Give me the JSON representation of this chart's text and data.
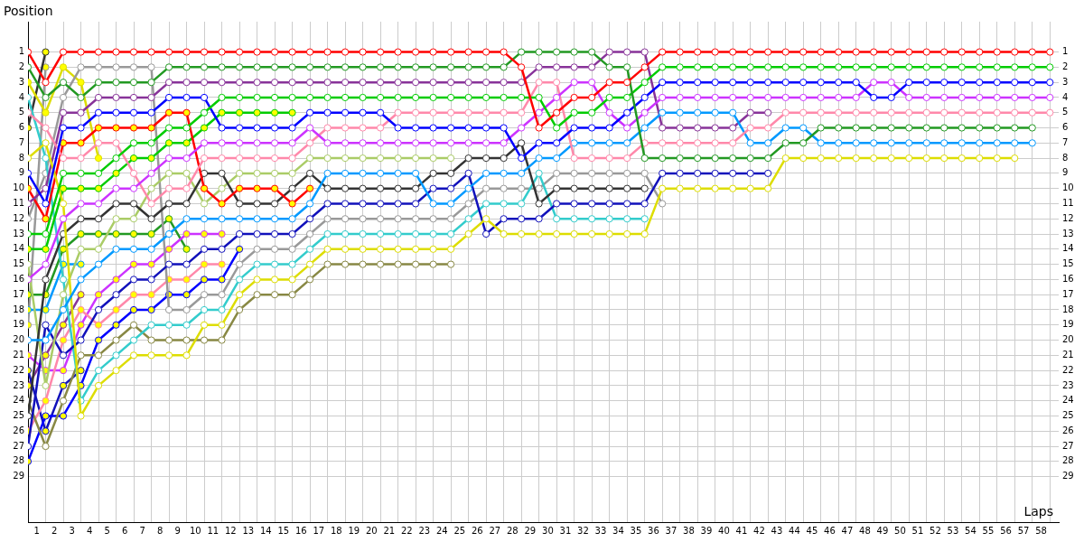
{
  "chart_data": {
    "type": "line",
    "xlabel": "Laps",
    "ylabel": "Position",
    "grid": true,
    "marker": "circle",
    "line_style": "solid",
    "x": [
      0,
      1,
      2,
      3,
      4,
      5,
      6,
      7,
      8,
      9,
      10,
      11,
      12,
      13,
      14,
      15,
      16,
      17,
      18,
      19,
      20,
      21,
      22,
      23,
      24,
      25,
      26,
      27,
      28,
      29,
      30,
      31,
      32,
      33,
      34,
      35,
      36,
      37,
      38,
      39,
      40,
      41,
      42,
      43,
      44,
      45,
      46,
      47,
      48,
      49,
      50,
      51,
      52,
      53,
      54,
      55,
      56,
      57,
      58
    ],
    "xlim": [
      0,
      58.5
    ],
    "xticks": [
      {
        "value": 0,
        "label": null
      },
      {
        "value": 1,
        "label": null
      },
      {
        "value": 2,
        "label": null
      },
      {
        "value": 3,
        "label": null
      },
      {
        "value": 4,
        "label": null
      },
      {
        "value": 5,
        "label": null
      },
      {
        "value": 6,
        "label": null
      },
      {
        "value": 7,
        "label": null
      },
      {
        "value": 8,
        "label": null
      },
      {
        "value": 9,
        "label": null
      },
      {
        "value": 10,
        "label": null
      },
      {
        "value": 11,
        "label": null
      },
      {
        "value": 12,
        "label": null
      },
      {
        "value": 13,
        "label": null
      },
      {
        "value": 14,
        "label": null
      },
      {
        "value": 15,
        "label": null
      },
      {
        "value": 16,
        "label": null
      },
      {
        "value": 17,
        "label": null
      },
      {
        "value": 18,
        "label": null
      },
      {
        "value": 19,
        "label": null
      },
      {
        "value": 20,
        "label": null
      },
      {
        "value": 21,
        "label": null
      },
      {
        "value": 22,
        "label": null
      },
      {
        "value": 23,
        "label": null
      },
      {
        "value": 24,
        "label": null
      },
      {
        "value": 25,
        "label": null
      },
      {
        "value": 26,
        "label": null
      },
      {
        "value": 27,
        "label": null
      },
      {
        "value": 28,
        "label": null
      },
      {
        "value": 29,
        "label": null
      },
      {
        "value": 30,
        "label": null
      },
      {
        "value": 31,
        "label": null
      },
      {
        "value": 32,
        "label": null
      },
      {
        "value": 33,
        "label": null
      },
      {
        "value": 34,
        "label": null
      },
      {
        "value": 35,
        "label": null
      },
      {
        "value": 36,
        "label": null
      },
      {
        "value": 37,
        "label": null
      },
      {
        "value": 38,
        "label": null
      },
      {
        "value": 39,
        "label": null
      },
      {
        "value": 40,
        "label": null
      },
      {
        "value": 41,
        "label": null
      },
      {
        "value": 42,
        "label": null
      },
      {
        "value": 43,
        "label": null
      },
      {
        "value": 44,
        "label": null
      },
      {
        "value": 45,
        "label": null
      },
      {
        "value": 46,
        "label": null
      },
      {
        "value": 47,
        "label": null
      },
      {
        "value": 48,
        "label": null
      },
      {
        "value": 49,
        "label": null
      },
      {
        "value": 50,
        "label": null
      },
      {
        "value": 51,
        "label": null
      },
      {
        "value": 52,
        "label": null
      },
      {
        "value": 53,
        "label": null
      },
      {
        "value": 54,
        "label": null
      },
      {
        "value": 55,
        "label": null
      },
      {
        "value": 56,
        "label": null
      },
      {
        "value": 57,
        "label": null
      },
      {
        "value": 58,
        "label": null
      },
      {
        "value": 0.5,
        "label": "1"
      },
      {
        "value": 1.5,
        "label": "2"
      },
      {
        "value": 2.5,
        "label": "3"
      },
      {
        "value": 3.5,
        "label": "4"
      },
      {
        "value": 4.5,
        "label": "5"
      },
      {
        "value": 5.5,
        "label": "6"
      },
      {
        "value": 6.5,
        "label": "7"
      },
      {
        "value": 7.5,
        "label": "8"
      },
      {
        "value": 8.5,
        "label": "9"
      },
      {
        "value": 9.5,
        "label": "10"
      },
      {
        "value": 10.5,
        "label": "11"
      },
      {
        "value": 11.5,
        "label": "12"
      },
      {
        "value": 12.5,
        "label": "13"
      },
      {
        "value": 13.5,
        "label": "14"
      },
      {
        "value": 14.5,
        "label": "15"
      },
      {
        "value": 15.5,
        "label": "16"
      },
      {
        "value": 16.5,
        "label": "17"
      },
      {
        "value": 17.5,
        "label": "18"
      },
      {
        "value": 18.5,
        "label": "19"
      },
      {
        "value": 19.5,
        "label": "20"
      },
      {
        "value": 20.5,
        "label": "21"
      },
      {
        "value": 21.5,
        "label": "22"
      },
      {
        "value": 22.5,
        "label": "23"
      },
      {
        "value": 23.5,
        "label": "24"
      },
      {
        "value": 24.5,
        "label": "25"
      },
      {
        "value": 25.5,
        "label": "26"
      },
      {
        "value": 26.5,
        "label": "27"
      },
      {
        "value": 27.5,
        "label": "28"
      },
      {
        "value": 28.5,
        "label": "29"
      },
      {
        "value": 29.5,
        "label": "30"
      },
      {
        "value": 30.5,
        "label": "31"
      },
      {
        "value": 31.5,
        "label": "32"
      },
      {
        "value": 32.5,
        "label": "33"
      },
      {
        "value": 33.5,
        "label": "34"
      },
      {
        "value": 34.5,
        "label": "35"
      },
      {
        "value": 35.5,
        "label": "36"
      },
      {
        "value": 36.5,
        "label": "37"
      },
      {
        "value": 37.5,
        "label": "38"
      },
      {
        "value": 38.5,
        "label": "39"
      },
      {
        "value": 39.5,
        "label": "40"
      },
      {
        "value": 40.5,
        "label": "41"
      },
      {
        "value": 41.5,
        "label": "42"
      },
      {
        "value": 42.5,
        "label": "43"
      },
      {
        "value": 43.5,
        "label": "44"
      },
      {
        "value": 44.5,
        "label": "45"
      },
      {
        "value": 45.5,
        "label": "46"
      },
      {
        "value": 46.5,
        "label": "47"
      },
      {
        "value": 47.5,
        "label": "48"
      },
      {
        "value": 48.5,
        "label": "49"
      },
      {
        "value": 49.5,
        "label": "50"
      },
      {
        "value": 50.5,
        "label": "51"
      },
      {
        "value": 51.5,
        "label": "52"
      },
      {
        "value": 52.5,
        "label": "53"
      },
      {
        "value": 53.5,
        "label": "54"
      },
      {
        "value": 54.5,
        "label": "55"
      },
      {
        "value": 55.5,
        "label": "56"
      },
      {
        "value": 56.5,
        "label": "57"
      },
      {
        "value": 57.5,
        "label": "58"
      }
    ],
    "ylim": [
      32,
      -1
    ],
    "yticks": [
      1,
      2,
      3,
      4,
      5,
      6,
      7,
      8,
      9,
      10,
      11,
      12,
      13,
      14,
      15,
      16,
      17,
      18,
      19,
      20,
      21,
      22,
      23,
      24,
      25,
      26,
      27,
      28,
      29
    ],
    "y2lim": [
      32,
      -1
    ],
    "y2ticks": [
      1,
      2,
      3,
      4,
      5,
      6,
      7,
      8,
      9,
      10,
      11,
      12,
      13,
      14,
      15,
      16,
      17,
      18,
      19,
      20,
      21,
      22,
      23,
      24,
      25,
      26,
      27,
      28,
      29
    ],
    "series": [
      {
        "color": "#ff0000",
        "values": [
          1,
          3,
          1,
          1,
          1,
          1,
          1,
          1,
          1,
          1,
          1,
          1,
          1,
          1,
          1,
          1,
          1,
          1,
          1,
          1,
          1,
          1,
          1,
          1,
          1,
          1,
          1,
          1,
          2,
          6,
          5,
          4,
          4,
          3,
          3,
          2,
          1,
          1,
          1,
          1,
          1,
          1,
          1,
          1,
          1,
          1,
          1,
          1,
          1,
          1,
          1,
          1,
          1,
          1,
          1,
          1,
          1,
          1,
          1
        ]
      },
      {
        "color": "#229922",
        "values": [
          2,
          4,
          3,
          4,
          3,
          3,
          3,
          3,
          2,
          2,
          2,
          2,
          2,
          2,
          2,
          2,
          2,
          2,
          2,
          2,
          2,
          2,
          2,
          2,
          2,
          2,
          2,
          2,
          1,
          1,
          1,
          1,
          1,
          2,
          2,
          8,
          8,
          8,
          8,
          8,
          8,
          8,
          8,
          7,
          7,
          6,
          6,
          6,
          6,
          6,
          6,
          6,
          6,
          6,
          6,
          6,
          6,
          6,
          null
        ]
      },
      {
        "color": "#00cc00",
        "values": [
          13,
          13,
          9,
          9,
          9,
          8,
          7,
          7,
          6,
          6,
          5,
          4,
          4,
          4,
          4,
          4,
          4,
          4,
          4,
          4,
          4,
          4,
          4,
          4,
          4,
          4,
          4,
          4,
          4,
          4,
          6,
          5,
          5,
          4,
          4,
          3,
          2,
          2,
          2,
          2,
          2,
          2,
          2,
          2,
          2,
          2,
          2,
          2,
          2,
          2,
          2,
          2,
          2,
          2,
          2,
          2,
          2,
          2,
          2
        ]
      },
      {
        "color": "#0000ff",
        "values": [
          9,
          11,
          6,
          6,
          5,
          5,
          5,
          5,
          4,
          4,
          4,
          6,
          6,
          6,
          6,
          6,
          5,
          5,
          5,
          5,
          5,
          6,
          6,
          6,
          6,
          6,
          6,
          6,
          8,
          7,
          7,
          6,
          6,
          6,
          5,
          4,
          3,
          3,
          3,
          3,
          3,
          3,
          3,
          3,
          3,
          3,
          3,
          3,
          4,
          4,
          3,
          3,
          3,
          3,
          3,
          3,
          3,
          3,
          3
        ]
      },
      {
        "color": "#cc33ff",
        "values": [
          16,
          15,
          12,
          11,
          11,
          10,
          10,
          9,
          8,
          8,
          7,
          7,
          7,
          7,
          7,
          7,
          6,
          7,
          7,
          7,
          7,
          7,
          7,
          7,
          7,
          7,
          7,
          7,
          6,
          5,
          4,
          3,
          3,
          5,
          6,
          5,
          4,
          4,
          4,
          4,
          4,
          4,
          4,
          4,
          4,
          4,
          4,
          4,
          3,
          3,
          4,
          4,
          4,
          4,
          4,
          4,
          4,
          4,
          4
        ]
      },
      {
        "color": "#ff88aa",
        "values": [
          5,
          6,
          8,
          8,
          7,
          7,
          9,
          11,
          10,
          10,
          8,
          8,
          8,
          8,
          8,
          8,
          7,
          6,
          6,
          6,
          6,
          5,
          5,
          5,
          5,
          5,
          5,
          5,
          5,
          3,
          3,
          8,
          8,
          8,
          8,
          7,
          7,
          7,
          7,
          7,
          7,
          6,
          6,
          5,
          5,
          5,
          5,
          5,
          5,
          5,
          5,
          5,
          5,
          5,
          5,
          5,
          5,
          5,
          5
        ]
      },
      {
        "color": "#0099ff",
        "values": [
          20,
          20,
          18,
          16,
          15,
          14,
          14,
          14,
          13,
          12,
          12,
          12,
          12,
          12,
          12,
          12,
          11,
          9,
          9,
          9,
          9,
          9,
          9,
          11,
          11,
          10,
          9,
          9,
          9,
          8,
          8,
          7,
          7,
          7,
          7,
          6,
          5,
          5,
          5,
          5,
          5,
          7,
          7,
          6,
          6,
          7,
          7,
          7,
          7,
          7,
          7,
          7,
          7,
          7,
          7,
          7,
          7,
          7,
          null
        ]
      },
      {
        "color": "#dddd00",
        "values": [
          8,
          7,
          11,
          25,
          23,
          22,
          21,
          21,
          21,
          21,
          19,
          19,
          17,
          16,
          16,
          16,
          15,
          14,
          14,
          14,
          14,
          14,
          14,
          14,
          14,
          13,
          12,
          13,
          13,
          13,
          13,
          13,
          13,
          13,
          13,
          13,
          10,
          10,
          10,
          10,
          10,
          10,
          10,
          8,
          8,
          8,
          8,
          8,
          8,
          8,
          8,
          8,
          8,
          8,
          8,
          8,
          8,
          null,
          null
        ]
      },
      {
        "color": "#883399",
        "x": [
          0,
          1,
          2,
          3,
          4,
          5,
          6,
          7,
          8,
          9,
          10,
          11,
          12,
          13,
          14,
          15,
          16,
          17,
          18,
          19,
          20,
          21,
          22,
          23,
          24,
          25,
          26,
          27,
          28,
          29,
          30,
          31,
          32,
          33,
          34,
          35,
          36,
          37,
          38,
          39,
          40,
          41,
          42
        ],
        "values": [
          11,
          10,
          5,
          5,
          4,
          4,
          4,
          4,
          3,
          3,
          3,
          3,
          3,
          3,
          3,
          3,
          3,
          3,
          3,
          3,
          3,
          3,
          3,
          3,
          3,
          3,
          3,
          3,
          3,
          2,
          2,
          2,
          2,
          1,
          1,
          1,
          6,
          6,
          6,
          6,
          6,
          5,
          5
        ]
      },
      {
        "color": "#ff0000",
        "x": [
          0,
          1,
          2,
          3,
          4,
          5,
          6,
          7,
          8,
          9,
          10,
          11,
          12,
          13,
          14,
          15,
          16
        ],
        "values": [
          10,
          12,
          7,
          7,
          6,
          6,
          6,
          6,
          5,
          5,
          10,
          11,
          10,
          10,
          10,
          11,
          10
        ],
        "colors": [
          "#ffff00",
          "#ffff00",
          "#ffff00",
          "#ffff00",
          "#ffff00",
          "#ffff00",
          "#ffff00",
          "#ffff00",
          "#ffff00",
          "#ffff00",
          "#ffff00",
          "#ffff00",
          "#ffff00",
          "#ffff00",
          "#ffff00",
          "#ffff00",
          "#ffff00"
        ]
      },
      {
        "color": "#00cc00",
        "x": [
          0,
          1,
          2,
          3,
          4,
          5,
          6,
          7,
          8,
          9,
          10,
          11,
          12,
          13,
          14,
          15
        ],
        "values": [
          14,
          14,
          10,
          10,
          10,
          9,
          8,
          8,
          7,
          7,
          6,
          5,
          5,
          5,
          5,
          5
        ],
        "colors": [
          "#ffff00",
          "#ffff00",
          "#ffff00",
          "#ffff00",
          "#ffff00",
          "#ffff00",
          "#ffff00",
          "#ffff00",
          "#ffff00",
          "#ffff00",
          "#ffff00",
          "#ffff00",
          "#ffff00",
          "#ffff00",
          "#ffff00",
          "#ffff00"
        ]
      },
      {
        "color": "#333333",
        "x": [
          0,
          1,
          2,
          3,
          4,
          5,
          6,
          7,
          8,
          9,
          10,
          11,
          12,
          13,
          14,
          15,
          16,
          17,
          18,
          19,
          20,
          21,
          22,
          23,
          24,
          25,
          26,
          27,
          28,
          29,
          30,
          31,
          32,
          33,
          34,
          35
        ],
        "values": [
          25,
          16,
          13,
          12,
          12,
          11,
          11,
          12,
          11,
          11,
          9,
          9,
          11,
          11,
          11,
          10,
          9,
          10,
          10,
          10,
          10,
          10,
          10,
          9,
          9,
          8,
          8,
          8,
          7,
          11,
          10,
          10,
          10,
          10,
          10,
          10
        ]
      },
      {
        "color": "#aacc66",
        "x": [
          0,
          1,
          2,
          3,
          4,
          5,
          6,
          7,
          8,
          9,
          10,
          11,
          12,
          13,
          14,
          15,
          16,
          17,
          18,
          19,
          20,
          21,
          22,
          23,
          24
        ],
        "values": [
          15,
          23,
          17,
          14,
          14,
          12,
          12,
          10,
          9,
          9,
          11,
          10,
          9,
          9,
          9,
          9,
          8,
          8,
          8,
          8,
          8,
          8,
          8,
          8,
          8
        ]
      },
      {
        "color": "#1111bb",
        "x": [
          0,
          1,
          2,
          3,
          4,
          5,
          6,
          7,
          8,
          9,
          10,
          11,
          12,
          13,
          14,
          15,
          16,
          17,
          18,
          19,
          20,
          21,
          22,
          23,
          24,
          25,
          26,
          27,
          28,
          29,
          30,
          31,
          32,
          33,
          34,
          35,
          36,
          37,
          38,
          39,
          40,
          41,
          42
        ],
        "values": [
          27,
          19,
          21,
          20,
          18,
          17,
          16,
          16,
          15,
          15,
          14,
          14,
          13,
          13,
          13,
          13,
          12,
          11,
          11,
          11,
          11,
          11,
          11,
          10,
          10,
          9,
          13,
          12,
          12,
          12,
          11,
          11,
          11,
          11,
          11,
          11,
          9,
          9,
          9,
          9,
          9,
          9,
          9
        ]
      },
      {
        "color": "#33cccc",
        "x": [
          0,
          1,
          2,
          3,
          4,
          5,
          6,
          7,
          8,
          9,
          10,
          11,
          12,
          13,
          14,
          15,
          16,
          17,
          18,
          19,
          20,
          21,
          22,
          23,
          24,
          25,
          26,
          27,
          28,
          29,
          30,
          31,
          32,
          33,
          34,
          35
        ],
        "values": [
          4,
          8,
          16,
          24,
          22,
          21,
          20,
          19,
          19,
          19,
          18,
          18,
          16,
          15,
          15,
          15,
          14,
          13,
          13,
          13,
          13,
          13,
          13,
          13,
          13,
          12,
          11,
          11,
          11,
          9,
          12,
          12,
          12,
          12,
          12,
          12
        ]
      },
      {
        "color": "#999999",
        "x": [
          0,
          1,
          2,
          3,
          4,
          5,
          6,
          7,
          8,
          9,
          10,
          11,
          12,
          13,
          14,
          15,
          16,
          17,
          18,
          19,
          20,
          21,
          22,
          23,
          24,
          25,
          26,
          27,
          28,
          29,
          30,
          31,
          32,
          33,
          34,
          35,
          36
        ],
        "values": [
          12,
          9,
          4,
          2,
          2,
          2,
          2,
          2,
          18,
          18,
          17,
          17,
          15,
          14,
          14,
          14,
          13,
          12,
          12,
          12,
          12,
          12,
          12,
          12,
          12,
          11,
          10,
          10,
          10,
          10,
          9,
          9,
          9,
          9,
          9,
          9,
          11
        ]
      },
      {
        "color": "#888844",
        "x": [
          0,
          1,
          2,
          3,
          4,
          5,
          6,
          7,
          8,
          9,
          10,
          11,
          12,
          13,
          14,
          15,
          16,
          17,
          18,
          19,
          20,
          21,
          22,
          23,
          24
        ],
        "values": [
          24,
          27,
          24,
          21,
          21,
          20,
          19,
          20,
          20,
          20,
          20,
          20,
          18,
          17,
          17,
          17,
          16,
          15,
          15,
          15,
          15,
          15,
          15,
          15,
          15
        ]
      },
      {
        "color": "#0000ff",
        "x": [
          0,
          1,
          2,
          3,
          4,
          5,
          6,
          7,
          8,
          9,
          10,
          11,
          12
        ],
        "values": [
          28,
          25,
          25,
          23,
          20,
          19,
          18,
          18,
          17,
          17,
          16,
          16,
          14
        ],
        "colors": [
          "#ffff00",
          "#ffff00",
          "#ffff00",
          "#ffff00",
          "#ffff00",
          "#ffff00",
          "#ffff00",
          "#ffff00",
          "#ffff00",
          "#ffff00",
          "#ffff00",
          "#ffff00",
          "#ffff00"
        ]
      },
      {
        "color": "#ff88aa",
        "x": [
          0,
          1,
          2,
          3,
          4,
          5,
          6,
          7,
          8,
          9,
          10,
          11
        ],
        "values": [
          26,
          24,
          20,
          18,
          19,
          18,
          17,
          17,
          16,
          16,
          15,
          15
        ],
        "colors": [
          "#ffff00",
          "#ffff00",
          "#ffff00",
          "#ffff00",
          "#ffff00",
          "#ffff00",
          "#ffff00",
          "#ffff00",
          "#ffff00",
          "#ffff00",
          "#ffff00",
          "#ffff00"
        ]
      },
      {
        "color": "#cc33ff",
        "x": [
          0,
          1,
          2,
          3,
          4,
          5,
          6,
          7,
          8,
          9,
          10,
          11
        ],
        "values": [
          21,
          22,
          22,
          19,
          17,
          16,
          15,
          15,
          14,
          13,
          13,
          13
        ],
        "colors": [
          "#ffff00",
          "#ffff00",
          "#ffff00",
          "#ffff00",
          "#ffff00",
          "#ffff00",
          "#ffff00",
          "#ffff00",
          "#ffff00",
          "#ffff00",
          "#ffff00",
          "#ffff00"
        ]
      },
      {
        "color": "#229922",
        "x": [
          0,
          1,
          2,
          3,
          4,
          5,
          6,
          7,
          8,
          9
        ],
        "values": [
          17,
          17,
          14,
          13,
          13,
          13,
          13,
          13,
          12,
          14
        ],
        "colors": [
          "#ffff00",
          "#ffff00",
          "#ffff00",
          "#ffff00",
          "#ffff00",
          "#ffff00",
          "#ffff00",
          "#ffff00",
          "#ffff00",
          "#ffff00"
        ]
      },
      {
        "color": "#1111bb",
        "x": [
          0,
          1,
          2,
          3
        ],
        "values": [
          22,
          26,
          23,
          22
        ],
        "colors": [
          "#ffff00",
          "#ffff00",
          "#ffff00",
          "#ffff00"
        ]
      },
      {
        "color": "#883399",
        "x": [
          0,
          1,
          2,
          3
        ],
        "values": [
          23,
          21,
          19,
          17
        ],
        "colors": [
          "#ffff00",
          "#ffff00",
          "#ffff00",
          "#ffff00"
        ]
      },
      {
        "color": "#0099ff",
        "x": [
          0,
          1,
          2,
          3
        ],
        "values": [
          18,
          18,
          15,
          15
        ],
        "colors": [
          "#ffff00",
          "#ffff00",
          "#ffff00",
          "#ffff00"
        ]
      },
      {
        "color": "#dddd00",
        "x": [
          0,
          1,
          2,
          3,
          4
        ],
        "values": [
          3,
          5,
          2,
          3,
          8
        ],
        "colors": [
          "#ffff00",
          "#ffff00",
          "#ffff00",
          "#ffff00",
          "#ffff00"
        ]
      },
      {
        "color": "#333333",
        "x": [
          0,
          1
        ],
        "values": [
          6,
          1
        ],
        "colors": [
          "#ffff00",
          "#ffff00"
        ]
      },
      {
        "color": "#999999",
        "x": [
          0,
          1
        ],
        "values": [
          19,
          2
        ],
        "colors": [
          "#ffff00",
          "#ffff00"
        ]
      }
    ]
  }
}
